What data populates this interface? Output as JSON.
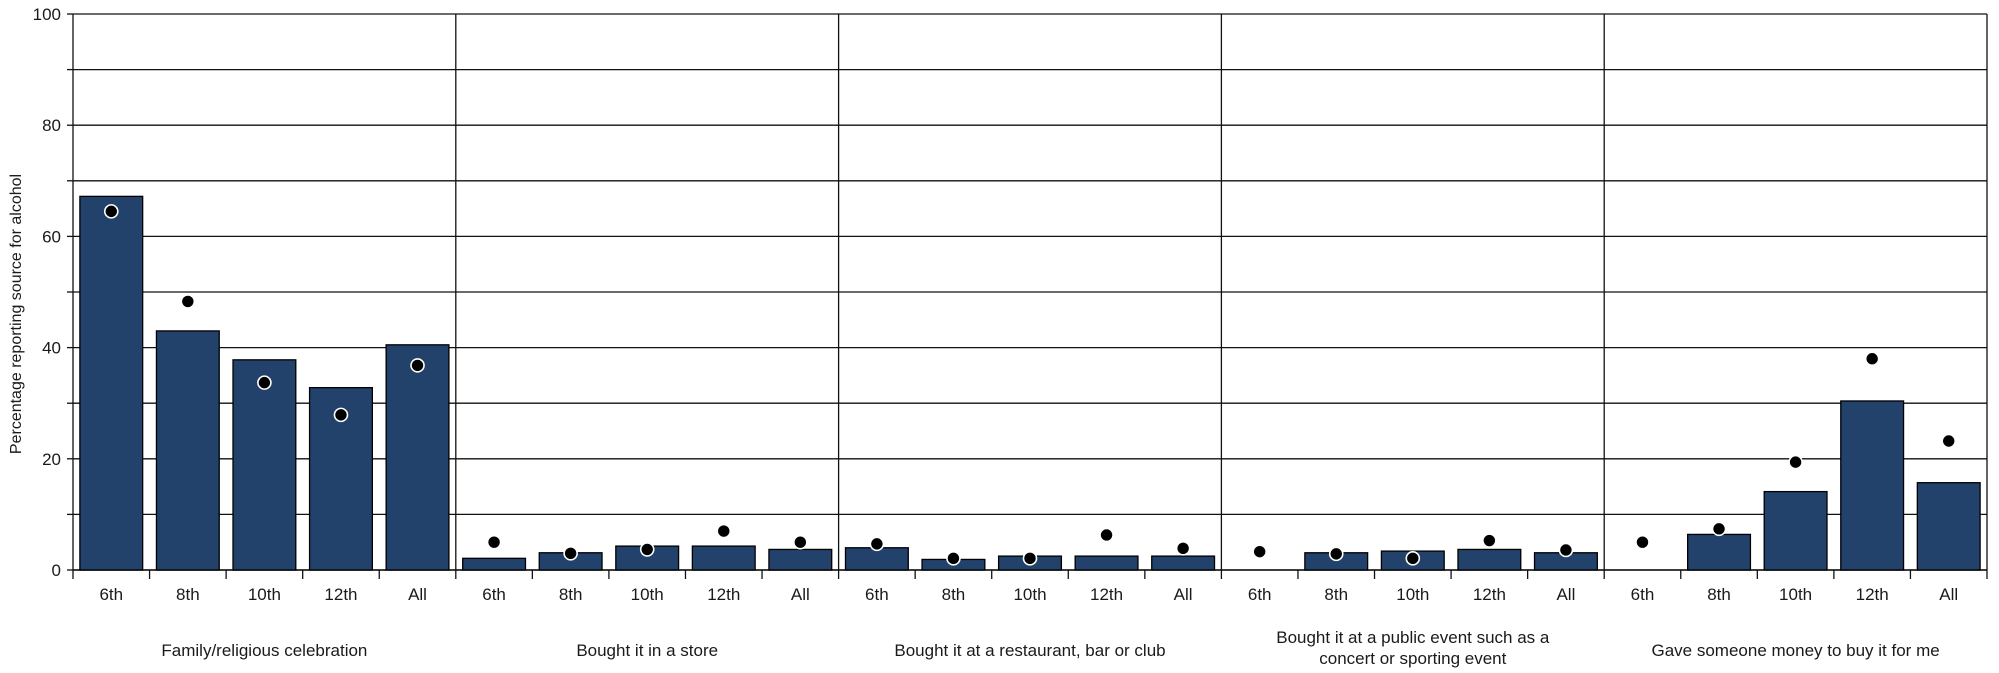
{
  "chart_data": {
    "type": "bar",
    "ylabel": "Percentage reporting source for alcohol",
    "ylim": [
      0,
      100
    ],
    "yticks": [
      0,
      20,
      40,
      60,
      80,
      100
    ],
    "grid": true,
    "bar_color": "#22426b",
    "marker_color": "#000000",
    "marker_outline": "#ffffff",
    "categories": [
      "6th",
      "8th",
      "10th",
      "12th",
      "All"
    ],
    "groups": [
      {
        "label": "Family/religious celebration",
        "bars": [
          67.2,
          43.0,
          37.8,
          32.8,
          40.5
        ],
        "markers": [
          64.5,
          48.3,
          33.7,
          27.9,
          36.8
        ]
      },
      {
        "label": "Bought it in a store",
        "bars": [
          2.1,
          3.1,
          4.3,
          4.3,
          3.7
        ],
        "markers": [
          5.0,
          3.0,
          3.7,
          7.0,
          5.0
        ]
      },
      {
        "label": "Bought it at a restaurant, bar or club",
        "bars": [
          4.0,
          1.9,
          2.5,
          2.5,
          2.5
        ],
        "markers": [
          4.7,
          2.1,
          2.1,
          6.3,
          3.9
        ]
      },
      {
        "label": "Bought it at a public event such as a concert or sporting event",
        "label_lines": [
          "Bought it at a public event such as a",
          "concert or sporting event"
        ],
        "bars": [
          0,
          3.1,
          3.4,
          3.7,
          3.1
        ],
        "markers": [
          3.3,
          2.9,
          2.1,
          5.3,
          3.6
        ]
      },
      {
        "label": "Gave someone money to buy it for me",
        "bars": [
          0,
          6.4,
          14.1,
          30.4,
          15.7
        ],
        "markers": [
          5.0,
          7.4,
          19.4,
          38.0,
          23.2
        ]
      }
    ]
  }
}
